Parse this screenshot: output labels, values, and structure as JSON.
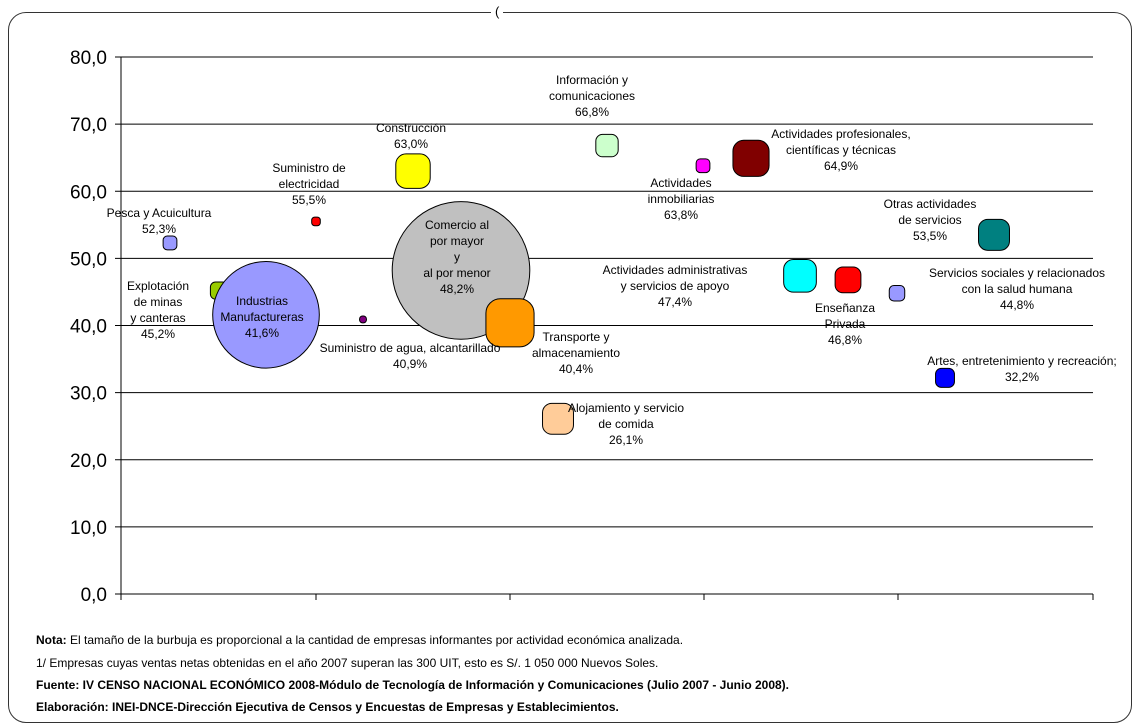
{
  "top_fragment": "(",
  "chart_data": {
    "type": "bubble",
    "ylim": [
      0,
      80
    ],
    "y_ticks": [
      "0,0",
      "10,0",
      "20,0",
      "30,0",
      "40,0",
      "50,0",
      "60,0",
      "70,0",
      "80,0"
    ],
    "grid": true,
    "points": [
      {
        "label": "Pesca y Acuicultura",
        "value_label": "52,3%",
        "y": 52.3,
        "color": "#9999ff",
        "size": 8
      },
      {
        "label": "Explotación de minas y canteras",
        "value_label": "45,2%",
        "y": 45.2,
        "color": "#99cc00",
        "size": 10
      },
      {
        "label": "Industrias Manufactureras",
        "value_label": "41,6%",
        "y": 41.6,
        "color": "#9999ff",
        "size": 62
      },
      {
        "label": "Suministro de electricidad",
        "value_label": "55,5%",
        "y": 55.5,
        "color": "#ff0000",
        "size": 5
      },
      {
        "label": "Suministro de agua, alcantarillado",
        "value_label": "40,9%",
        "y": 40.9,
        "color": "#800080",
        "size": 4
      },
      {
        "label": "Construcción",
        "value_label": "63,0%",
        "y": 63.0,
        "color": "#ffff00",
        "size": 20
      },
      {
        "label": "Comercio al por mayor y al por menor",
        "value_label": "48,2%",
        "y": 48.2,
        "color": "#c0c0c0",
        "size": 80
      },
      {
        "label": "Transporte y almacenamiento",
        "value_label": "40,4%",
        "y": 40.4,
        "color": "#ff9900",
        "size": 28
      },
      {
        "label": "Alojamiento y servicio de comida",
        "value_label": "26,1%",
        "y": 26.1,
        "color": "#ffcc99",
        "size": 18
      },
      {
        "label": "Información y comunicaciones",
        "value_label": "66,8%",
        "y": 66.8,
        "color": "#ccffcc",
        "size": 13
      },
      {
        "label": "Actividades inmobiliarias",
        "value_label": "63,8%",
        "y": 63.8,
        "color": "#ff00ff",
        "size": 8
      },
      {
        "label": "Actividades profesionales, científicas y técnicas",
        "value_label": "64,9%",
        "y": 64.9,
        "color": "#800000",
        "size": 21
      },
      {
        "label": "Actividades administrativas y servicios de apoyo",
        "value_label": "47,4%",
        "y": 47.4,
        "color": "#00ffff",
        "size": 19
      },
      {
        "label": "Enseñanza Privada",
        "value_label": "46,8%",
        "y": 46.8,
        "color": "#ff0000",
        "size": 15
      },
      {
        "label": "Servicios sociales y relacionados con la salud humana",
        "value_label": "44,8%",
        "y": 44.8,
        "color": "#9999ff",
        "size": 9
      },
      {
        "label": "Otras actividades de servicios",
        "value_label": "53,5%",
        "y": 53.5,
        "color": "#008080",
        "size": 18
      },
      {
        "label": "Artes, entretenimiento y recreación",
        "value_label": "32,2%",
        "y": 32.2,
        "color": "#0000ff",
        "size": 11
      }
    ],
    "labels": [
      {
        "lines": [
          "Pesca y Acuicultura",
          "52,3%"
        ]
      },
      {
        "lines": [
          "Explotación",
          "de minas",
          "y canteras",
          "45,2%"
        ]
      },
      {
        "lines": [
          "Industrias",
          "Manufactureras",
          "41,6%"
        ]
      },
      {
        "lines": [
          "Suministro de",
          "electricidad",
          "55,5%"
        ]
      },
      {
        "lines": [
          "Suministro de agua, alcantarillado",
          "40,9%"
        ]
      },
      {
        "lines": [
          "Construcción",
          "63,0%"
        ]
      },
      {
        "lines": [
          "Comercio al",
          "por mayor",
          "y",
          "al por menor",
          "48,2%"
        ]
      },
      {
        "lines": [
          "Transporte y",
          "almacenamiento",
          "40,4%"
        ]
      },
      {
        "lines": [
          "Alojamiento y servicio",
          "de comida",
          "26,1%"
        ]
      },
      {
        "lines": [
          "Información y",
          "comunicaciones",
          "66,8%"
        ]
      },
      {
        "lines": [
          "Actividades",
          "inmobiliarias",
          "63,8%"
        ]
      },
      {
        "lines": [
          "Actividades profesionales,",
          "científicas y técnicas",
          "64,9%"
        ]
      },
      {
        "lines": [
          "Actividades administrativas",
          "y servicios de apoyo",
          "47,4%"
        ]
      },
      {
        "lines": [
          "Enseñanza",
          "Privada",
          "46,8%"
        ]
      },
      {
        "lines": [
          "Servicios sociales y relacionados",
          "con la salud humana",
          "44,8%"
        ]
      },
      {
        "lines": [
          "Otras actividades",
          "de servicios",
          "53,5%"
        ]
      },
      {
        "lines": [
          "Artes, entretenimiento y recreación;",
          "32,2%"
        ]
      }
    ]
  },
  "notes": {
    "nota_bold": "Nota:",
    "nota_text": " El tamaño de la burbuja es proporcional a la cantidad de empresas informantes por actividad económica analizada.",
    "footnote_1": "1/ Empresas cuyas ventas netas obtenidas en el año 2007 superan las 300 UIT, esto es S/. 1 050 000 Nuevos Soles.",
    "fuente_bold": "Fuente: IV CENSO NACIONAL ECONÓMICO 2008-Módulo de Tecnología de Información y Comunicaciones (Julio 2007 - Junio 2008).",
    "elaboracion_bold": "Elaboración:  INEI-DNCE-Dirección Ejecutiva de Censos y Encuestas de Empresas y Establecimientos."
  }
}
